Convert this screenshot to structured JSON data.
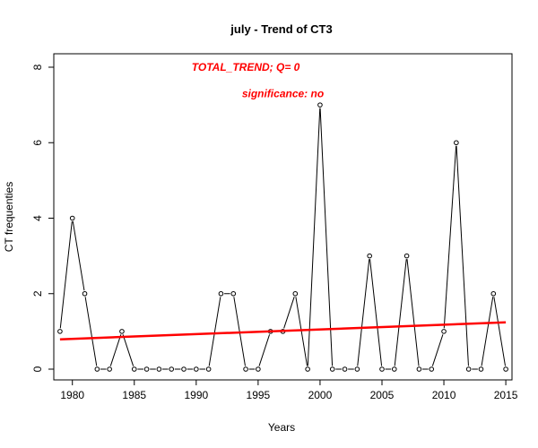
{
  "chart_data": {
    "type": "line",
    "title": "july  -  Trend of CT3",
    "xlabel": "Years",
    "ylabel": "CT frequenties",
    "xlim": [
      1978.5,
      2015.5
    ],
    "ylim": [
      0,
      8
    ],
    "xticks": [
      1980,
      1985,
      1990,
      1995,
      2000,
      2005,
      2010,
      2015
    ],
    "yticks": [
      0,
      2,
      4,
      6,
      8
    ],
    "grid": false,
    "series": [
      {
        "x": [
          1979,
          1980,
          1981,
          1982,
          1983,
          1984,
          1985,
          1986,
          1987,
          1988,
          1989,
          1990,
          1991,
          1992,
          1993,
          1994,
          1995,
          1996,
          1997,
          1998,
          1999,
          2000,
          2001,
          2002,
          2003,
          2004,
          2005,
          2006,
          2007,
          2008,
          2009,
          2010,
          2011,
          2012,
          2013,
          2014,
          2015
        ],
        "values": [
          1,
          4,
          2,
          0,
          0,
          1,
          0,
          0,
          0,
          0,
          0,
          0,
          0,
          2,
          2,
          0,
          0,
          1,
          1,
          2,
          0,
          7,
          0,
          0,
          0,
          3,
          0,
          0,
          3,
          0,
          0,
          1,
          6,
          0,
          0,
          2,
          0
        ],
        "color": "#000000"
      }
    ],
    "trend": {
      "x": [
        1979,
        2015
      ],
      "values": [
        0.79,
        1.24
      ],
      "color": "#ff0000"
    },
    "annotations": [
      {
        "id": "total_trend",
        "text": "TOTAL_TREND;  Q=   0",
        "x": 1994,
        "y": 8.0
      },
      {
        "id": "significance",
        "text": "significance:   no",
        "x": 1997,
        "y": 7.3
      }
    ]
  }
}
